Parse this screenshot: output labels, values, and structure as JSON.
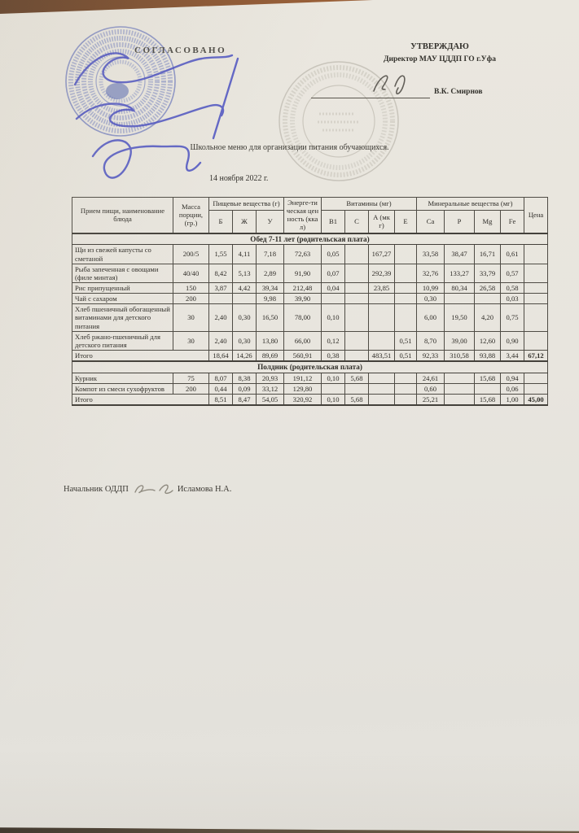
{
  "document": {
    "agreed_label": "СОГЛАСОВАНО",
    "approved_label": "УТВЕРЖДАЮ",
    "approved_by": "Директор МАУ ЦДДП ГО г.Уфа",
    "approved_signer": "В.К. Смирнов",
    "title": "Школьное меню для организации питания обучающихся.",
    "date": "14 ноября 2022 г.",
    "footer_role": "Начальник ОДДП",
    "footer_name": "Исламова Н.А."
  },
  "colors": {
    "stamp_blue": "#5163b8",
    "signature_ink": "#4a50c2",
    "stamp_gray": "#7d7869",
    "paper": "#e8e5de",
    "wood_background": "#8a5531"
  },
  "table": {
    "header": {
      "meal": "Прием пищи, наименование блюда",
      "mass": "Масса порции, (гр.)",
      "nutrients_group": "Пищевые вещества (г)",
      "nutrients": [
        "Б",
        "Ж",
        "У"
      ],
      "energy": "Энерге-тическая ценность (ккал)",
      "vitamins_group": "Витамины (мг)",
      "vitamins": [
        "В1",
        "С",
        "А (мкг)",
        "Е"
      ],
      "minerals_group": "Минеральные вещества (мг)",
      "minerals": [
        "Ca",
        "P",
        "Mg",
        "Fe"
      ],
      "price": "Цена"
    },
    "sections": [
      {
        "title": "Обед 7-11 лет (родительская плата)",
        "rows": [
          [
            "Щи из свежей капусты со сметаной",
            "200/5",
            "1,55",
            "4,11",
            "7,18",
            "72,63",
            "0,05",
            "",
            "167,27",
            "",
            "33,58",
            "38,47",
            "16,71",
            "0,61",
            ""
          ],
          [
            "Рыба запеченная с овощами (филе минтая)",
            "40/40",
            "8,42",
            "5,13",
            "2,89",
            "91,90",
            "0,07",
            "",
            "292,39",
            "",
            "32,76",
            "133,27",
            "33,79",
            "0,57",
            ""
          ],
          [
            "Рис припущенный",
            "150",
            "3,87",
            "4,42",
            "39,34",
            "212,48",
            "0,04",
            "",
            "23,85",
            "",
            "10,99",
            "80,34",
            "26,58",
            "0,58",
            ""
          ],
          [
            "Чай с сахаром",
            "200",
            "",
            "",
            "9,98",
            "39,90",
            "",
            "",
            "",
            "",
            "0,30",
            "",
            "",
            "0,03",
            ""
          ],
          [
            "Хлеб пшеничный обогащенный витаминами для детского питания",
            "30",
            "2,40",
            "0,30",
            "16,50",
            "78,00",
            "0,10",
            "",
            "",
            "",
            "6,00",
            "19,50",
            "4,20",
            "0,75",
            ""
          ],
          [
            "Хлеб ржано-пшеничный для детского питания",
            "30",
            "2,40",
            "0,30",
            "13,80",
            "66,00",
            "0,12",
            "",
            "",
            "0,51",
            "8,70",
            "39,00",
            "12,60",
            "0,90",
            ""
          ]
        ],
        "total": [
          "Итого",
          "18,64",
          "14,26",
          "89,69",
          "560,91",
          "0,38",
          "",
          "483,51",
          "0,51",
          "92,33",
          "310,58",
          "93,88",
          "3,44",
          "67,12"
        ]
      },
      {
        "title": "Полдник (родительская плата)",
        "rows": [
          [
            "Курник",
            "75",
            "8,07",
            "8,38",
            "20,93",
            "191,12",
            "0,10",
            "5,68",
            "",
            "",
            "24,61",
            "",
            "15,68",
            "0,94",
            ""
          ],
          [
            "Компот из смеси сухофруктов",
            "200",
            "0,44",
            "0,09",
            "33,12",
            "129,80",
            "",
            "",
            "",
            "",
            "0,60",
            "",
            "",
            "0,06",
            ""
          ]
        ],
        "total": [
          "Итого",
          "8,51",
          "8,47",
          "54,05",
          "320,92",
          "0,10",
          "5,68",
          "",
          "",
          "25,21",
          "",
          "15,68",
          "1,00",
          "45,00"
        ]
      }
    ]
  }
}
